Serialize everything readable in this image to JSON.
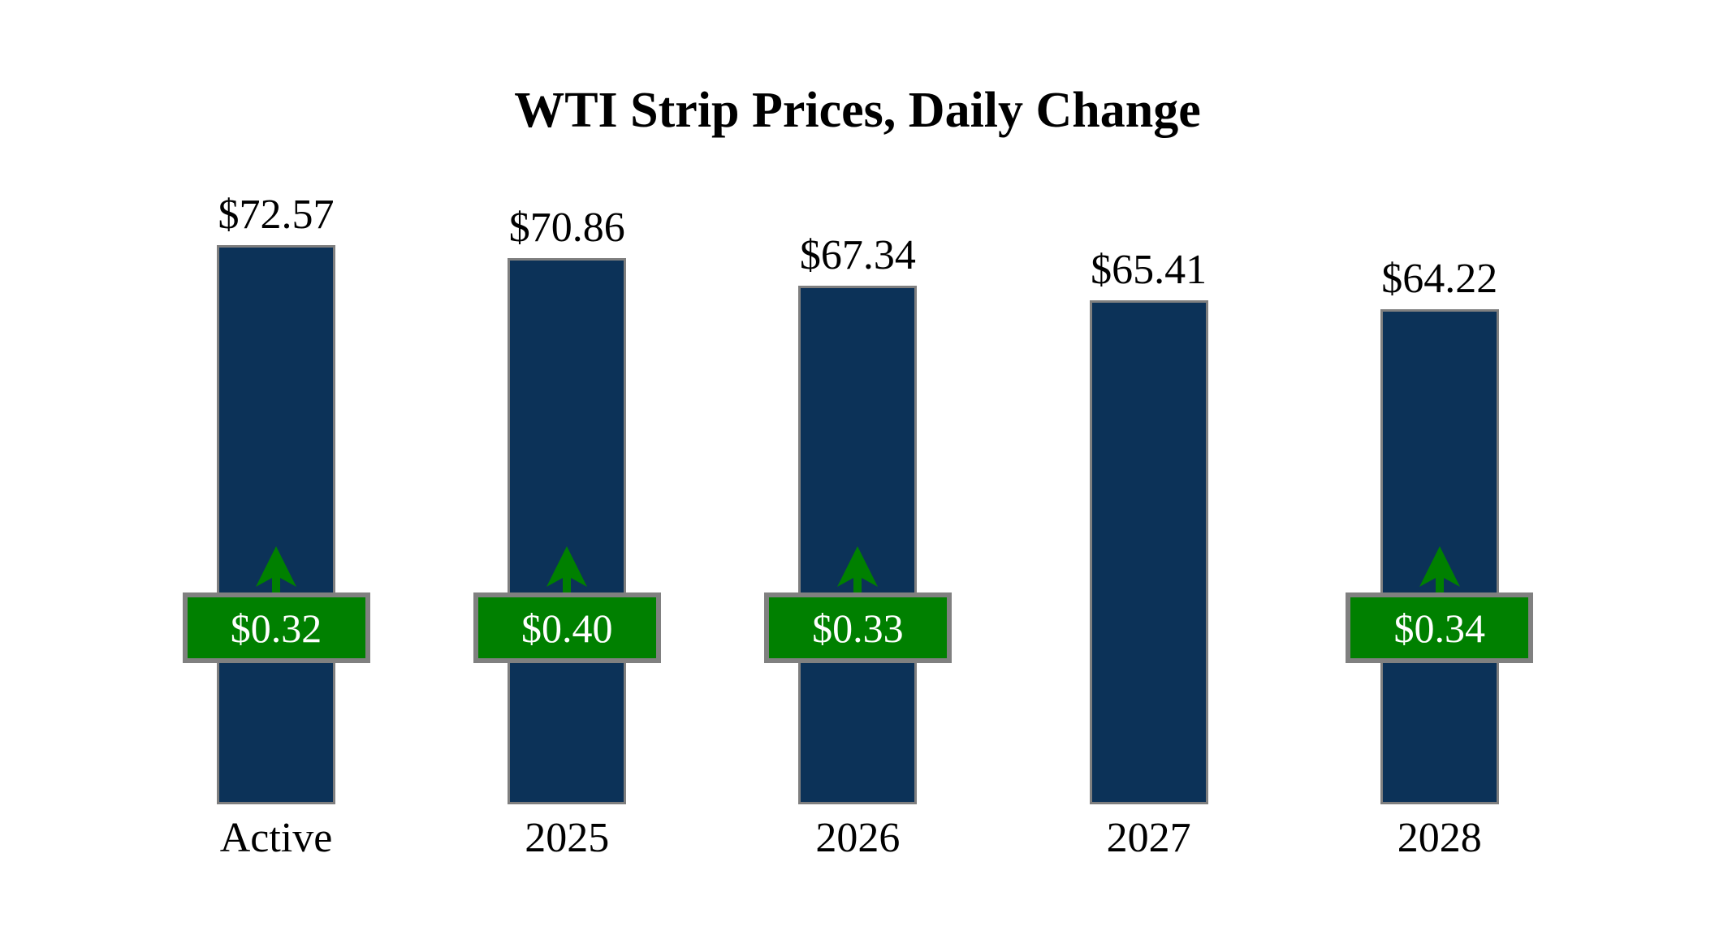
{
  "title": "WTI Strip Prices, Daily Change",
  "chart_data": {
    "type": "bar",
    "title": "WTI Strip Prices, Daily Change",
    "categories": [
      "Active",
      "2025",
      "2026",
      "2027",
      "2028"
    ],
    "values": [
      72.57,
      70.86,
      67.34,
      65.41,
      64.22
    ],
    "value_labels": [
      "$72.57",
      "$70.86",
      "$67.34",
      "$65.41",
      "$64.22"
    ],
    "daily_changes": [
      0.32,
      0.4,
      0.33,
      null,
      0.34
    ],
    "daily_change_labels": [
      "$0.32",
      "$0.40",
      "$0.33",
      null,
      "$0.34"
    ],
    "change_direction": [
      "up",
      "up",
      "up",
      null,
      "up"
    ],
    "xlabel": "",
    "ylabel": "",
    "ylim": [
      0,
      72.57
    ],
    "grid": false,
    "legend": false,
    "bar_baseline_value": 0
  },
  "colors": {
    "background": "#ffffff",
    "bar_fill": "#0c3258",
    "bar_border": "#7f7f7f",
    "badge_fill": "#008000",
    "badge_border": "#808080",
    "badge_text": "#ffffff",
    "arrow": "#008000",
    "title_text": "#000000",
    "label_text": "#000000"
  }
}
